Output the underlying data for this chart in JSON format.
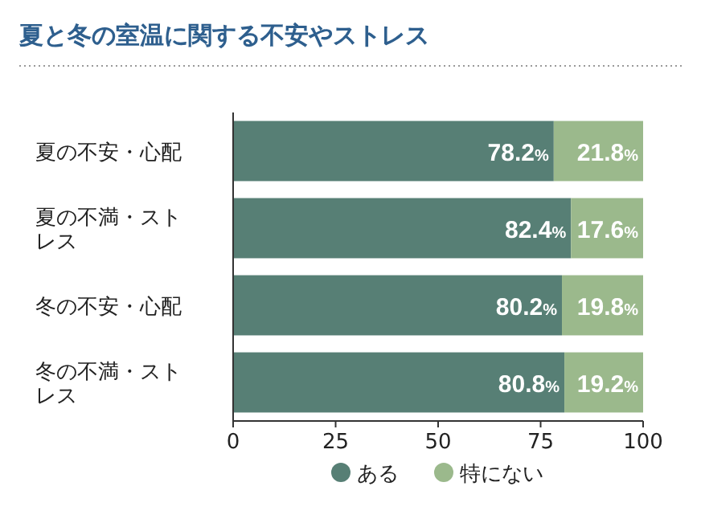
{
  "chart_data": {
    "type": "bar",
    "orientation": "horizontal",
    "stacked": true,
    "title": "夏と冬の室温に関する不安やストレス",
    "categories": [
      "夏の不安・心配",
      "夏の不満・ストレス",
      "冬の不安・心配",
      "冬の不満・ストレス"
    ],
    "series": [
      {
        "name": "ある",
        "color": "#577f75",
        "values": [
          78.2,
          82.4,
          80.2,
          80.8
        ],
        "value_labels": [
          "78.2%",
          "82.4%",
          "80.2%",
          "80.8%"
        ]
      },
      {
        "name": "特にない",
        "color": "#9bb98c",
        "values": [
          21.8,
          17.6,
          19.8,
          19.2
        ],
        "value_labels": [
          "21.8%",
          "17.6%",
          "19.8%",
          "19.2%"
        ]
      }
    ],
    "xlim": [
      0,
      100
    ],
    "xticks": [
      0,
      25,
      50,
      75,
      100
    ],
    "legend": "bottom",
    "grid": false
  }
}
